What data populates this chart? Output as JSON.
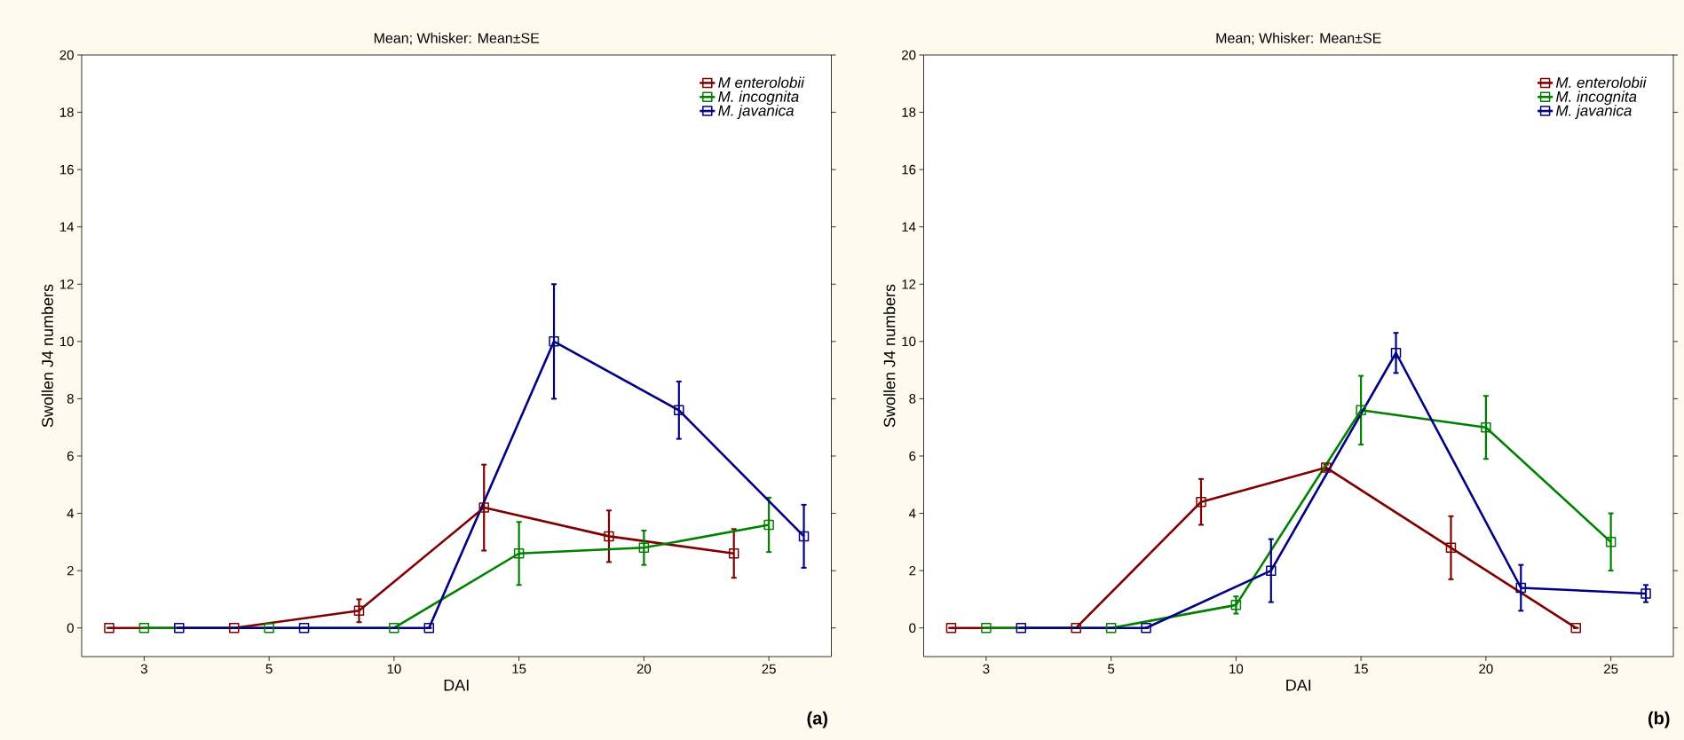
{
  "chart_data": [
    {
      "type": "line",
      "title": "Mean; Whisker: Mean±SE",
      "xlabel": "DAI",
      "ylabel": "Swollen J4 numbers",
      "categories": [
        "3",
        "5",
        "10",
        "15",
        "20",
        "25"
      ],
      "ylim": [
        -1,
        20
      ],
      "yticks": [
        0,
        2,
        4,
        6,
        8,
        10,
        12,
        14,
        16,
        18,
        20
      ],
      "grid": false,
      "legend": "top right",
      "marker": "square",
      "line_style": "solid",
      "annotations": [
        "**(a)**"
      ],
      "series": [
        {
          "name": "M enterolobii",
          "color": "#800000",
          "values": [
            0,
            0,
            0.6,
            4.2,
            3.2,
            2.6
          ],
          "errors": [
            null,
            null,
            0.4,
            1.5,
            0.9,
            0.85
          ]
        },
        {
          "name": "M. incognita",
          "color": "#008000",
          "values": [
            0,
            0,
            0,
            2.6,
            2.8,
            3.6
          ],
          "errors": [
            null,
            null,
            null,
            1.1,
            0.6,
            0.95
          ]
        },
        {
          "name": "M. javanica",
          "color": "#000080",
          "values": [
            0,
            0,
            0,
            10,
            7.6,
            3.2
          ],
          "errors": [
            null,
            null,
            null,
            2,
            1,
            1.1
          ]
        }
      ]
    },
    {
      "type": "line",
      "title": "Mean; Whisker: Mean±SE",
      "xlabel": "DAI",
      "ylabel": "Swollen J4 numbers",
      "categories": [
        "3",
        "5",
        "10",
        "15",
        "20",
        "25"
      ],
      "ylim": [
        -1,
        20
      ],
      "yticks": [
        0,
        2,
        4,
        6,
        8,
        10,
        12,
        14,
        16,
        18,
        20
      ],
      "grid": false,
      "legend": "top right",
      "marker": "square",
      "line_style": "solid",
      "annotations": [
        "**(b)**"
      ],
      "series": [
        {
          "name": "M. enterolobii",
          "color": "#800000",
          "values": [
            0,
            0,
            4.4,
            5.6,
            2.8,
            0
          ],
          "errors": [
            null,
            null,
            0.8,
            0.1,
            1.1,
            null
          ]
        },
        {
          "name": "M. incognita",
          "color": "#008000",
          "values": [
            0,
            0,
            0.8,
            7.6,
            7.0,
            3.0
          ],
          "errors": [
            null,
            null,
            0.3,
            1.2,
            1.1,
            1.0
          ]
        },
        {
          "name": "M. javanica",
          "color": "#000080",
          "values": [
            0,
            0,
            2.0,
            9.6,
            1.4,
            1.2
          ],
          "errors": [
            null,
            null,
            1.1,
            0.7,
            0.8,
            0.3
          ]
        }
      ]
    }
  ]
}
